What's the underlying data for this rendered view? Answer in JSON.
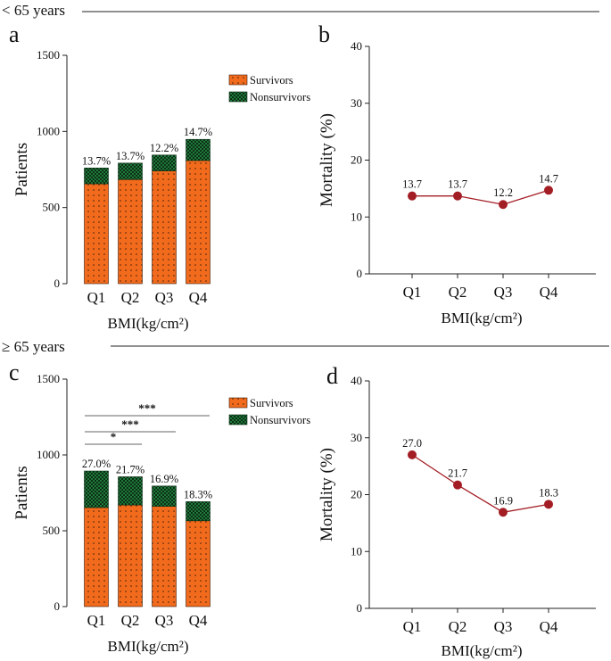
{
  "sections": [
    {
      "title": "< 65 years"
    },
    {
      "title": "≥ 65 years"
    }
  ],
  "colors": {
    "survivors": "#f26b1d",
    "nonsurvivors": "#1f7a3a",
    "line": "#a31d24"
  },
  "chart_data": [
    {
      "panel": "a",
      "type": "bar",
      "stacked": true,
      "title": "",
      "categories": [
        "Q1",
        "Q2",
        "Q3",
        "Q4"
      ],
      "series": [
        {
          "name": "Survivors",
          "values": [
            656,
            684,
            741,
            809
          ]
        },
        {
          "name": "Nonsurvivors",
          "values": [
            104,
            108,
            104,
            139
          ]
        }
      ],
      "totals": [
        760,
        792,
        845,
        948
      ],
      "pct_labels": [
        "13.7%",
        "13.7%",
        "12.2%",
        "14.7%"
      ],
      "xlabel": "BMI(kg/cm²)",
      "ylabel": "Patients",
      "ylim": [
        0,
        1500
      ],
      "yticks": [
        "0",
        "500",
        "1000",
        "1500"
      ],
      "legend_position": "top-right",
      "significance": []
    },
    {
      "panel": "b",
      "type": "line",
      "title": "",
      "categories": [
        "Q1",
        "Q2",
        "Q3",
        "Q4"
      ],
      "values": [
        13.7,
        13.7,
        12.2,
        14.7
      ],
      "value_labels": [
        "13.7",
        "13.7",
        "12.2",
        "14.7"
      ],
      "xlabel": "BMI(kg/cm²)",
      "ylabel": "Mortality (%)",
      "ylim": [
        0,
        40
      ],
      "yticks": [
        "0",
        "10",
        "20",
        "30",
        "40"
      ]
    },
    {
      "panel": "c",
      "type": "bar",
      "stacked": true,
      "title": "",
      "categories": [
        "Q1",
        "Q2",
        "Q3",
        "Q4"
      ],
      "series": [
        {
          "name": "Survivors",
          "values": [
            653,
            670,
            661,
            566
          ]
        },
        {
          "name": "Nonsurvivors",
          "values": [
            241,
            186,
            134,
            126
          ]
        }
      ],
      "totals": [
        894,
        856,
        795,
        692
      ],
      "pct_labels": [
        "27.0%",
        "21.7%",
        "16.9%",
        "18.3%"
      ],
      "xlabel": "BMI(kg/cm²)",
      "ylabel": "Patients",
      "ylim": [
        0,
        1500
      ],
      "yticks": [
        "0",
        "500",
        "1000",
        "1500"
      ],
      "legend_position": "top-right",
      "significance": [
        {
          "from": 0,
          "to": 1,
          "label": "*"
        },
        {
          "from": 0,
          "to": 2,
          "label": "***"
        },
        {
          "from": 0,
          "to": 3,
          "label": "***"
        }
      ]
    },
    {
      "panel": "d",
      "type": "line",
      "title": "",
      "categories": [
        "Q1",
        "Q2",
        "Q3",
        "Q4"
      ],
      "values": [
        27.0,
        21.7,
        16.9,
        18.3
      ],
      "value_labels": [
        "27.0",
        "21.7",
        "16.9",
        "18.3"
      ],
      "xlabel": "BMI(kg/cm²)",
      "ylabel": "Mortality (%)",
      "ylim": [
        0,
        40
      ],
      "yticks": [
        "0",
        "10",
        "20",
        "30",
        "40"
      ]
    }
  ]
}
